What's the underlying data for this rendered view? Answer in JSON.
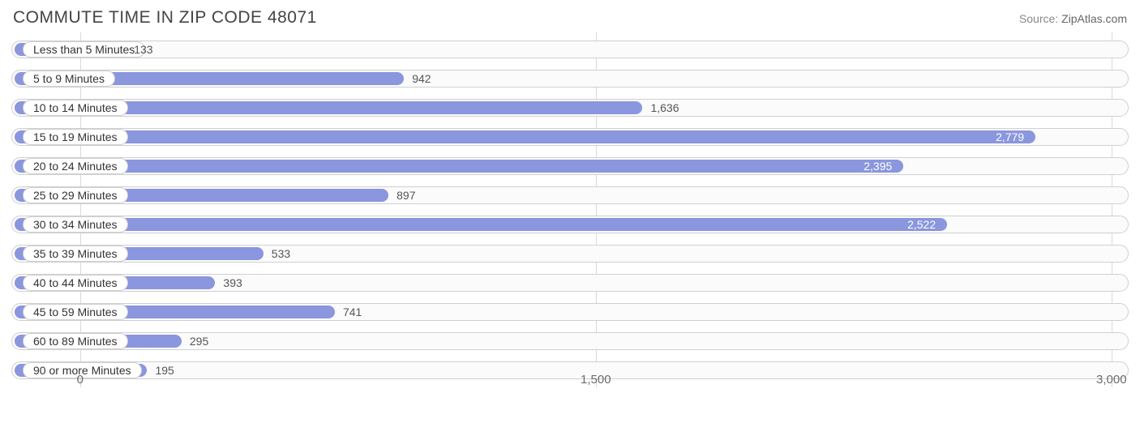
{
  "title": "COMMUTE TIME IN ZIP CODE 48071",
  "source_prefix": "Source: ",
  "source_name": "ZipAtlas.com",
  "chart": {
    "type": "bar-horizontal",
    "xmin": -200,
    "xmax": 3050,
    "ticks": [
      {
        "value": 0,
        "label": "0"
      },
      {
        "value": 1500,
        "label": "1,500"
      },
      {
        "value": 3000,
        "label": "3,000"
      }
    ],
    "bar_color": "#8a96dd",
    "track_border": "#d0d0d0",
    "grid_color": "#d9d9d9",
    "background_color": "#ffffff",
    "value_inside_color": "#ffffff",
    "value_outside_color": "#555555",
    "inside_threshold": 2200,
    "rows": [
      {
        "label": "Less than 5 Minutes",
        "value": 133,
        "display": "133"
      },
      {
        "label": "5 to 9 Minutes",
        "value": 942,
        "display": "942"
      },
      {
        "label": "10 to 14 Minutes",
        "value": 1636,
        "display": "1,636"
      },
      {
        "label": "15 to 19 Minutes",
        "value": 2779,
        "display": "2,779"
      },
      {
        "label": "20 to 24 Minutes",
        "value": 2395,
        "display": "2,395"
      },
      {
        "label": "25 to 29 Minutes",
        "value": 897,
        "display": "897"
      },
      {
        "label": "30 to 34 Minutes",
        "value": 2522,
        "display": "2,522"
      },
      {
        "label": "35 to 39 Minutes",
        "value": 533,
        "display": "533"
      },
      {
        "label": "40 to 44 Minutes",
        "value": 393,
        "display": "393"
      },
      {
        "label": "45 to 59 Minutes",
        "value": 741,
        "display": "741"
      },
      {
        "label": "60 to 89 Minutes",
        "value": 295,
        "display": "295"
      },
      {
        "label": "90 or more Minutes",
        "value": 195,
        "display": "195"
      }
    ]
  }
}
